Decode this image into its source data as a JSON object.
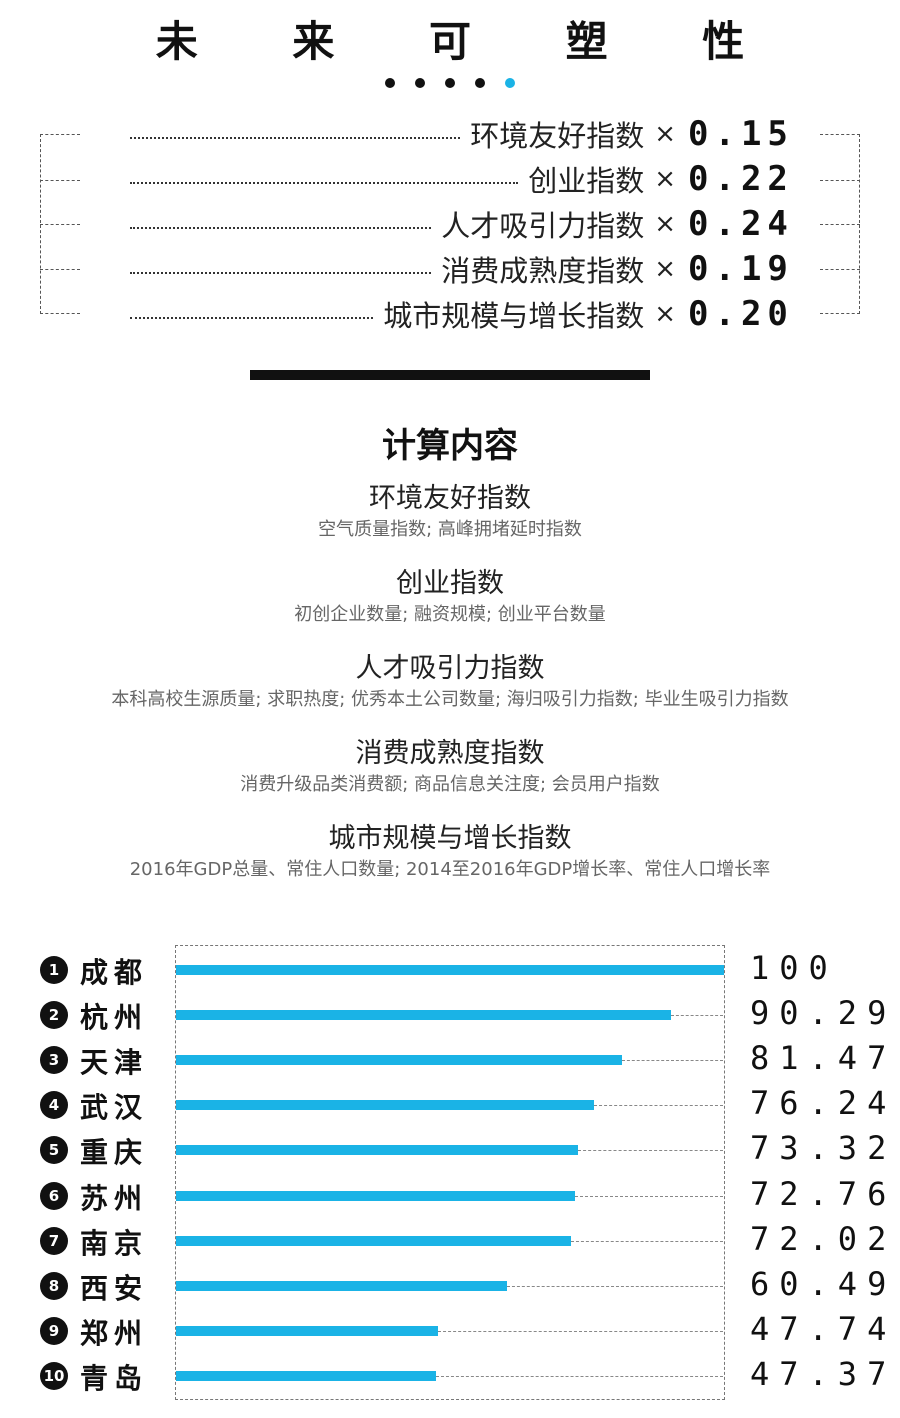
{
  "title": "未 来 可 塑 性",
  "weights": [
    {
      "label": "环境友好指数",
      "times": "×",
      "value": "0.15"
    },
    {
      "label": "创业指数",
      "times": "×",
      "value": "0.22"
    },
    {
      "label": "人才吸引力指数",
      "times": "×",
      "value": "0.24"
    },
    {
      "label": "消费成熟度指数",
      "times": "×",
      "value": "0.19"
    },
    {
      "label": "城市规模与增长指数",
      "times": "×",
      "value": "0.20"
    }
  ],
  "calc": {
    "title": "计算内容",
    "items": [
      {
        "name": "环境友好指数",
        "desc": "空气质量指数; 高峰拥堵延时指数"
      },
      {
        "name": "创业指数",
        "desc": "初创企业数量; 融资规模; 创业平台数量"
      },
      {
        "name": "人才吸引力指数",
        "desc": "本科高校生源质量; 求职热度; 优秀本土公司数量; 海归吸引力指数; 毕业生吸引力指数"
      },
      {
        "name": "消费成熟度指数",
        "desc": "消费升级品类消费额; 商品信息关注度; 会员用户指数"
      },
      {
        "name": "城市规模与增长指数",
        "desc": "2016年GDP总量、常住人口数量; 2014至2016年GDP增长率、常住人口增长率"
      }
    ]
  },
  "colors": {
    "bar": "#1ab3e6",
    "accent_dot": "#1ab3e6"
  },
  "chart_data": {
    "type": "bar",
    "orientation": "horizontal",
    "ranks": [
      "1",
      "2",
      "3",
      "4",
      "5",
      "6",
      "7",
      "8",
      "9",
      "10"
    ],
    "categories": [
      "成都",
      "杭州",
      "天津",
      "武汉",
      "重庆",
      "苏州",
      "南京",
      "西安",
      "郑州",
      "青岛"
    ],
    "values": [
      100,
      90.29,
      81.47,
      76.24,
      73.32,
      72.76,
      72.02,
      60.49,
      47.74,
      47.37
    ],
    "value_labels": [
      "100",
      "90.29",
      "81.47",
      "76.24",
      "73.32",
      "72.76",
      "72.02",
      "60.49",
      "47.74",
      "47.37"
    ],
    "xlim": [
      0,
      100
    ]
  }
}
